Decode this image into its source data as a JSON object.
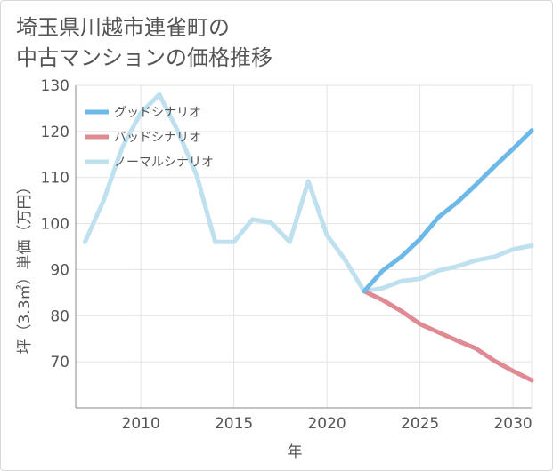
{
  "title_line1": "埼玉県川越市連雀町の",
  "title_line2": "中古マンションの価格推移",
  "chart_data": {
    "type": "line",
    "xlabel": "年",
    "ylabel": "坪（3.3㎡）単価（万円）",
    "xlim": [
      2006.5,
      2031
    ],
    "ylim": [
      60,
      130
    ],
    "xticks": [
      2010,
      2015,
      2020,
      2025,
      2030
    ],
    "yticks": [
      70,
      80,
      90,
      100,
      110,
      120,
      130
    ],
    "grid": true,
    "legend_position": "top-left",
    "series": [
      {
        "name": "グッドシナリオ",
        "color": "#6cb8e8",
        "x": [
          2022,
          2023,
          2024,
          2025,
          2026,
          2027,
          2028,
          2029,
          2030,
          2031
        ],
        "y": [
          85.3,
          89.8,
          92.8,
          96.6,
          101.4,
          104.6,
          108.4,
          112.4,
          116.2,
          120.2
        ]
      },
      {
        "name": "バッドシナリオ",
        "color": "#e08a93",
        "x": [
          2022,
          2023,
          2024,
          2025,
          2026,
          2027,
          2028,
          2029,
          2030,
          2031
        ],
        "y": [
          85.3,
          83.4,
          81.0,
          78.2,
          76.4,
          74.6,
          72.9,
          70.2,
          68.0,
          66.0
        ]
      },
      {
        "name": "ノーマルシナリオ",
        "color": "#bfe0ee",
        "x": [
          2007,
          2008,
          2009,
          2010,
          2011,
          2012,
          2013,
          2014,
          2015,
          2016,
          2017,
          2018,
          2019,
          2020,
          2021,
          2022,
          2023,
          2024,
          2025,
          2026,
          2027,
          2028,
          2029,
          2030,
          2031
        ],
        "y": [
          96.0,
          105.0,
          116.5,
          124.0,
          128.0,
          120.0,
          110.5,
          96.0,
          96.0,
          100.9,
          100.2,
          96.0,
          109.2,
          97.5,
          92.0,
          85.3,
          86.0,
          87.5,
          88.0,
          89.8,
          90.7,
          92.0,
          92.8,
          94.4,
          95.2
        ]
      }
    ]
  }
}
